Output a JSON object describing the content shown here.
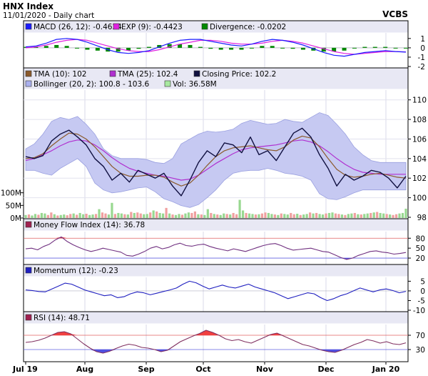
{
  "header": {
    "title": "HNX Index",
    "subtitle": "11/01/2020 - Daily chart",
    "brand": "VCBS"
  },
  "chart_data": [
    {
      "type": "line",
      "panel": "macd",
      "legend": [
        {
          "label": "MACD (26, 12): -0.4624",
          "color": "#1a1aff"
        },
        {
          "label": "EXP (9): -0.4423",
          "color": "#e020e0"
        },
        {
          "label": "Divergence: -0.0202",
          "color": "#008800"
        }
      ],
      "y_ticks": [
        "1",
        "0",
        "-1",
        "-2"
      ],
      "ylim": [
        -2,
        1.6
      ],
      "series": [
        {
          "name": "MACD (26, 12)",
          "role": "macd",
          "color": "#1a1aff",
          "values": [
            0.1,
            0.2,
            0.5,
            0.9,
            1.0,
            0.9,
            0.6,
            0.2,
            -0.2,
            -0.5,
            -0.6,
            -0.5,
            -0.3,
            0.1,
            0.5,
            0.8,
            0.9,
            0.9,
            0.7,
            0.5,
            0.3,
            0.2,
            0.4,
            0.7,
            0.9,
            0.8,
            0.6,
            0.3,
            -0.1,
            -0.5,
            -0.8,
            -0.9,
            -0.7,
            -0.5,
            -0.4,
            -0.3,
            -0.4,
            -0.46
          ]
        },
        {
          "name": "EXP (9)",
          "role": "signal",
          "color": "#e020e0",
          "values": [
            0.0,
            0.1,
            0.3,
            0.6,
            0.8,
            0.9,
            0.8,
            0.5,
            0.2,
            -0.1,
            -0.3,
            -0.4,
            -0.4,
            -0.2,
            0.1,
            0.4,
            0.6,
            0.8,
            0.8,
            0.7,
            0.5,
            0.4,
            0.4,
            0.5,
            0.7,
            0.8,
            0.7,
            0.5,
            0.2,
            -0.1,
            -0.4,
            -0.6,
            -0.7,
            -0.6,
            -0.5,
            -0.4,
            -0.4,
            -0.44
          ]
        },
        {
          "name": "Divergence",
          "role": "histogram",
          "color": "#008800",
          "values": [
            0.1,
            0.1,
            0.2,
            0.3,
            0.2,
            0.0,
            -0.2,
            -0.3,
            -0.4,
            -0.4,
            -0.3,
            -0.1,
            0.1,
            0.3,
            0.4,
            0.4,
            0.3,
            0.1,
            -0.1,
            -0.2,
            -0.2,
            -0.2,
            0.0,
            0.2,
            0.2,
            0.0,
            -0.1,
            -0.2,
            -0.3,
            -0.4,
            -0.4,
            -0.3,
            0.0,
            0.1,
            0.1,
            0.1,
            0.0,
            -0.02
          ]
        }
      ]
    },
    {
      "type": "line",
      "panel": "price",
      "legend": [
        {
          "label": "TMA (10): 102",
          "color": "#8b5a2b"
        },
        {
          "label": "TMA (25): 102.4",
          "color": "#b030d0"
        },
        {
          "label": "Closing Price: 102.2",
          "color": "#101040"
        },
        {
          "label": "Bollinger (20, 2): 100.8 - 103.6",
          "color": "#aab0ee"
        },
        {
          "label": "Vol: 36.58M",
          "color": "#a8e8a0"
        }
      ],
      "y_ticks": [
        "110",
        "108",
        "106",
        "104",
        "102",
        "100",
        "98"
      ],
      "ylim": [
        98,
        111
      ],
      "series": [
        {
          "name": "Closing Price",
          "color": "#101040",
          "values": [
            104.2,
            104.0,
            104.3,
            105.8,
            106.5,
            106.9,
            106.2,
            105.4,
            104.0,
            103.2,
            101.8,
            102.5,
            101.6,
            102.8,
            102.4,
            102.0,
            102.5,
            101.2,
            100.2,
            101.8,
            103.6,
            104.8,
            104.2,
            105.6,
            105.4,
            104.6,
            106.2,
            104.4,
            104.8,
            103.8,
            105.2,
            106.6,
            107.1,
            106.2,
            104.4,
            103.0,
            101.2,
            102.4,
            101.8,
            102.2,
            102.8,
            102.6,
            102.0,
            101.0,
            102.2
          ]
        },
        {
          "name": "TMA (10)",
          "color": "#8b5a2b",
          "values": [
            104.0,
            104.1,
            104.5,
            105.3,
            106.0,
            106.6,
            106.5,
            106.0,
            105.2,
            104.2,
            103.2,
            102.5,
            102.2,
            102.2,
            102.3,
            102.3,
            102.1,
            101.6,
            101.2,
            101.5,
            102.3,
            103.3,
            104.2,
            104.8,
            105.1,
            105.2,
            105.3,
            105.1,
            104.9,
            104.8,
            105.2,
            105.9,
            106.3,
            106.1,
            105.2,
            104.0,
            102.9,
            102.3,
            102.1,
            102.2,
            102.4,
            102.5,
            102.3,
            102.1,
            102.0
          ]
        },
        {
          "name": "TMA (25)",
          "color": "#b030d0",
          "values": [
            103.8,
            104.0,
            104.4,
            104.8,
            105.3,
            105.7,
            105.9,
            105.8,
            105.4,
            104.8,
            104.1,
            103.5,
            103.0,
            102.7,
            102.5,
            102.3,
            102.2,
            102.0,
            101.8,
            101.9,
            102.3,
            102.9,
            103.5,
            104.0,
            104.5,
            104.9,
            105.1,
            105.2,
            105.3,
            105.4,
            105.6,
            105.8,
            105.9,
            105.7,
            105.3,
            104.7,
            104.0,
            103.4,
            102.9,
            102.6,
            102.5,
            102.4,
            102.4,
            102.4,
            102.4
          ]
        },
        {
          "name": "Bollinger upper",
          "color": "#aab0ee",
          "values": [
            105.0,
            105.5,
            106.5,
            107.8,
            108.2,
            108.0,
            108.3,
            107.5,
            106.5,
            105.0,
            104.3,
            104.0,
            104.0,
            104.0,
            103.9,
            103.6,
            103.5,
            104.0,
            105.5,
            106.0,
            106.5,
            106.8,
            106.7,
            106.8,
            107.0,
            107.6,
            107.9,
            107.7,
            107.5,
            107.6,
            108.0,
            107.8,
            107.7,
            108.2,
            108.7,
            108.4,
            107.5,
            106.5,
            105.2,
            104.4,
            103.8,
            103.6,
            103.6,
            103.6,
            103.6
          ]
        },
        {
          "name": "Bollinger lower",
          "color": "#aab0ee",
          "values": [
            102.8,
            102.8,
            102.5,
            102.3,
            103.0,
            103.5,
            104.0,
            103.2,
            101.5,
            100.8,
            100.5,
            100.6,
            100.8,
            101.0,
            101.1,
            100.6,
            99.9,
            99.6,
            99.2,
            99.0,
            99.3,
            100.0,
            100.8,
            101.8,
            102.5,
            102.7,
            102.8,
            102.8,
            103.0,
            102.8,
            102.5,
            102.4,
            102.2,
            101.8,
            100.4,
            99.9,
            99.8,
            100.1,
            100.5,
            100.8,
            100.8,
            100.8,
            100.8,
            100.8,
            100.8
          ]
        }
      ],
      "volume": {
        "y_ticks": [
          "100M",
          "50M",
          "0M"
        ],
        "ylim": [
          0,
          150
        ],
        "up_color": "#98d890",
        "down_color": "#f0a0a0",
        "values": [
          12,
          14,
          10,
          16,
          13,
          20,
          18,
          12,
          22,
          15,
          10,
          12,
          14,
          11,
          16,
          18,
          13,
          20,
          15,
          17,
          12,
          14,
          16,
          35,
          22,
          18,
          14,
          60,
          16,
          20,
          18,
          15,
          14,
          24,
          20,
          22,
          18,
          15,
          16,
          22,
          30,
          26,
          20,
          18,
          40,
          18,
          14,
          12,
          16,
          13,
          18,
          22,
          20,
          26,
          15,
          14,
          12,
          35,
          20,
          16,
          14,
          12,
          18,
          16,
          14,
          20,
          15,
          72,
          30,
          20,
          18,
          16,
          14,
          15,
          18,
          22,
          20,
          16,
          14,
          12,
          18,
          16,
          14,
          20,
          15,
          17,
          12,
          14,
          16,
          22,
          18,
          20,
          16,
          14,
          18,
          20,
          22,
          18,
          16,
          14,
          12,
          16,
          18,
          20,
          15,
          14,
          16,
          18,
          20,
          22,
          24,
          20,
          18,
          16,
          14,
          12,
          15,
          18,
          20,
          37
        ],
        "up": [
          1,
          0,
          1,
          1,
          0,
          1,
          1,
          0,
          0,
          1,
          0,
          1,
          1,
          0,
          0,
          1,
          0,
          1,
          1,
          0,
          1,
          1,
          0,
          1,
          0,
          0,
          1,
          1,
          0,
          1,
          1,
          0,
          1,
          0,
          1,
          0,
          0,
          1,
          1,
          0,
          1,
          0,
          1,
          1,
          0,
          1,
          0,
          1,
          1,
          0,
          1,
          1,
          0,
          0,
          1,
          0,
          1,
          1,
          0,
          1,
          0,
          1,
          1,
          0,
          1,
          0,
          0,
          1,
          1,
          0,
          1,
          1,
          0,
          1,
          0,
          0,
          1,
          1,
          0,
          1,
          0,
          1,
          1,
          0,
          0,
          1,
          0,
          1,
          1,
          0,
          1,
          0,
          1,
          1,
          0,
          1,
          1,
          0,
          0,
          1,
          0,
          1,
          1,
          0,
          1,
          0,
          1,
          1,
          0,
          1,
          0,
          1,
          1,
          0,
          1,
          0,
          0,
          1,
          1,
          1
        ]
      }
    },
    {
      "type": "line",
      "panel": "mfi",
      "legend": [
        {
          "label": "Money Flow Index (14): 36.78",
          "color": "#a02050"
        }
      ],
      "y_ticks": [
        "80",
        "50",
        "20"
      ],
      "ylim": [
        5,
        100
      ],
      "thresholds": [
        {
          "value": 80,
          "color": "#e06060"
        },
        {
          "value": 20,
          "color": "#6060e0"
        }
      ],
      "series": [
        {
          "name": "Money Flow Index (14)",
          "color": "#703080",
          "values": [
            48,
            50,
            45,
            55,
            62,
            75,
            84,
            70,
            60,
            52,
            45,
            40,
            44,
            50,
            46,
            42,
            38,
            28,
            26,
            32,
            40,
            50,
            55,
            48,
            52,
            60,
            65,
            58,
            56,
            60,
            62,
            55,
            50,
            46,
            42,
            48,
            44,
            40,
            46,
            52,
            58,
            62,
            64,
            58,
            50,
            44,
            46,
            48,
            50,
            45,
            40,
            38,
            30,
            22,
            16,
            20,
            28,
            34,
            40,
            42,
            38,
            36,
            32,
            34,
            37
          ]
        }
      ]
    },
    {
      "type": "line",
      "panel": "momentum",
      "legend": [
        {
          "label": "Momentum (12): -0.23",
          "color": "#2020c0"
        }
      ],
      "y_ticks": [
        "5",
        "0",
        "-5",
        "-10"
      ],
      "ylim": [
        -10,
        7
      ],
      "series": [
        {
          "name": "Momentum (12)",
          "color": "#2020c0",
          "values": [
            0.5,
            0.2,
            -0.3,
            -0.5,
            1.0,
            2.5,
            4.0,
            3.5,
            2.0,
            0.5,
            -0.5,
            -1.5,
            -2.5,
            -2.0,
            -3.5,
            -3.0,
            -1.5,
            -0.5,
            -1.0,
            -2.0,
            -1.2,
            -0.3,
            0.5,
            1.5,
            3.5,
            5.0,
            4.2,
            2.5,
            1.0,
            2.0,
            3.0,
            2.0,
            1.5,
            2.5,
            3.5,
            2.0,
            1.0,
            0.0,
            -1.0,
            -2.5,
            -4.0,
            -3.0,
            -2.0,
            -1.0,
            -1.5,
            -3.5,
            -5.0,
            -4.0,
            -2.5,
            -1.5,
            0.0,
            1.5,
            0.5,
            -0.5,
            0.5,
            1.0,
            0.2,
            -1.0,
            -0.23
          ]
        }
      ]
    },
    {
      "type": "line",
      "panel": "rsi",
      "legend": [
        {
          "label": "RSI (14): 48.71",
          "color": "#a02050"
        }
      ],
      "y_ticks": [
        "70",
        "30"
      ],
      "ylim": [
        0,
        100
      ],
      "thresholds": [
        {
          "value": 70,
          "color": "#e06060"
        },
        {
          "value": 30,
          "color": "#6060e0"
        }
      ],
      "series": [
        {
          "name": "RSI (14)",
          "color": "#803060",
          "values": [
            50,
            52,
            56,
            62,
            70,
            78,
            80,
            74,
            60,
            46,
            34,
            24,
            20,
            25,
            33,
            40,
            45,
            42,
            36,
            34,
            30,
            24,
            28,
            40,
            52,
            60,
            68,
            75,
            84,
            78,
            70,
            60,
            55,
            58,
            52,
            48,
            56,
            64,
            72,
            76,
            68,
            60,
            52,
            44,
            40,
            34,
            28,
            24,
            22,
            28,
            36,
            44,
            50,
            58,
            54,
            48,
            52,
            46,
            44,
            48.71
          ]
        }
      ]
    }
  ],
  "x_axis": {
    "labels": [
      "Jul 19",
      "Aug",
      "Sep",
      "Oct",
      "Nov",
      "Dec",
      "Jan 20"
    ]
  }
}
